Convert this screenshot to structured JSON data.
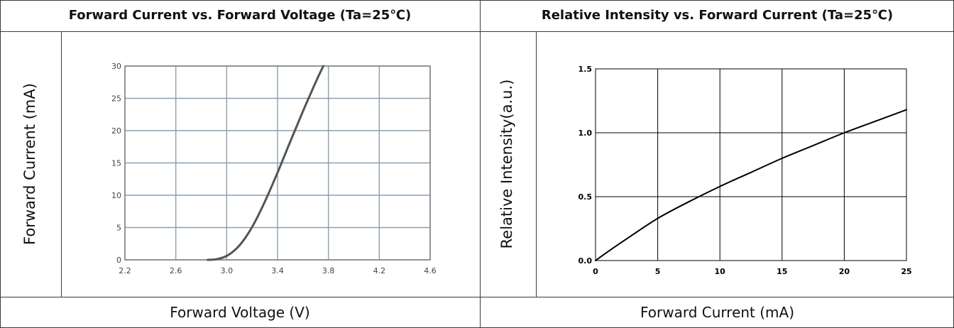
{
  "tables": {
    "left": {
      "header": "Forward Current vs. Forward Voltage (Ta=25℃)",
      "y_caption": "Forward Current (mA)",
      "x_caption": "Forward Voltage (V)"
    },
    "right": {
      "header": "Relative Intensity vs. Forward Current (Ta=25℃)",
      "y_caption": "Relative Intensity(a.u.)",
      "x_caption": "Forward Current (mA)"
    }
  },
  "colors": {
    "left_grid": "#8a9fb0",
    "left_axis": "#7a7a7a",
    "left_curve": "#555555",
    "left_tick_text": "#444444",
    "right_grid": "#000000",
    "right_curve": "#000000",
    "right_tick_text": "#000000",
    "border": "#3a3a3a"
  },
  "chart_data": [
    {
      "type": "line",
      "title": "Forward Current vs. Forward Voltage (Ta=25℃)",
      "xlabel": "Forward Voltage (V)",
      "ylabel": "Forward Current (mA)",
      "xlim": [
        2.2,
        4.6
      ],
      "ylim": [
        0,
        30
      ],
      "x_ticks": [
        "2.2",
        "2.6",
        "3.0",
        "3.4",
        "3.8",
        "4.2",
        "4.6"
      ],
      "y_ticks": [
        "0",
        "5",
        "10",
        "15",
        "20",
        "25",
        "30"
      ],
      "grid": true,
      "series": [
        {
          "x": [
            2.85,
            2.92,
            3.0,
            3.08,
            3.15,
            3.22,
            3.3,
            3.4,
            3.5,
            3.6,
            3.7,
            3.76
          ],
          "y": [
            0,
            0.1,
            0.6,
            1.8,
            3.5,
            5.8,
            9.0,
            13.5,
            18.3,
            23.0,
            27.5,
            30.0
          ]
        }
      ]
    },
    {
      "type": "line",
      "title": "Relative Intensity vs. Forward Current (Ta=25℃)",
      "xlabel": "Forward Current (mA)",
      "ylabel": "Relative Intensity(a.u.)",
      "xlim": [
        0,
        25
      ],
      "ylim": [
        0,
        1.5
      ],
      "x_ticks": [
        "0",
        "5",
        "10",
        "15",
        "20",
        "25"
      ],
      "y_ticks": [
        "0.0",
        "0.5",
        "1.0",
        "1.5"
      ],
      "grid": true,
      "series": [
        {
          "x": [
            0,
            1,
            2.5,
            5,
            7.5,
            10,
            12.5,
            15,
            17.5,
            20,
            22.5,
            25
          ],
          "y": [
            0,
            0.07,
            0.17,
            0.33,
            0.46,
            0.58,
            0.69,
            0.8,
            0.9,
            1.0,
            1.09,
            1.18
          ]
        }
      ]
    }
  ]
}
